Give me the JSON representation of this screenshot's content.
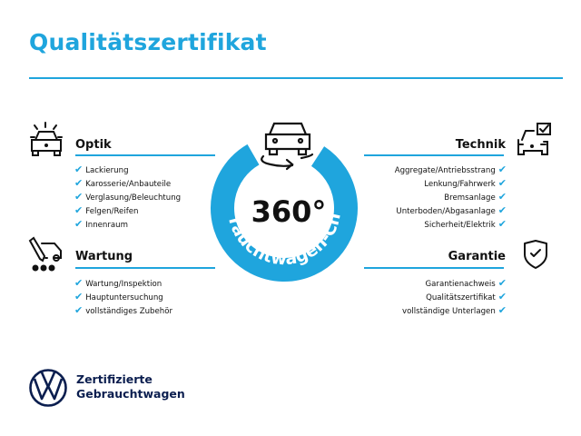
{
  "title": "Qualitätszertifikat",
  "center": {
    "value": "360°",
    "arc_text": "Gebrauchtwagen-Check"
  },
  "sections": {
    "optik": {
      "heading": "Optik",
      "items": [
        "Lackierung",
        "Karosserie/Anbauteile",
        "Verglasung/Beleuchtung",
        "Felgen/Reifen",
        "Innenraum"
      ]
    },
    "wartung": {
      "heading": "Wartung",
      "items": [
        "Wartung/Inspektion",
        "Hauptuntersuchung",
        "vollständiges Zubehör"
      ]
    },
    "technik": {
      "heading": "Technik",
      "items": [
        "Aggregate/Antriebsstrang",
        "Lenkung/Fahrwerk",
        "Bremsanlage",
        "Unterboden/Abgasanlage",
        "Sicherheit/Elektrik"
      ]
    },
    "garantie": {
      "heading": "Garantie",
      "items": [
        "Garantienachweis",
        "Qualitätszertifikat",
        "vollständige Unterlagen"
      ]
    }
  },
  "check_glyph": "✔",
  "brand": {
    "line1": "Zertifizierte",
    "line2": "Gebrauchtwagen",
    "logo": "VW"
  },
  "colors": {
    "accent": "#1fa5dd",
    "brand_navy": "#0b1e4f"
  }
}
